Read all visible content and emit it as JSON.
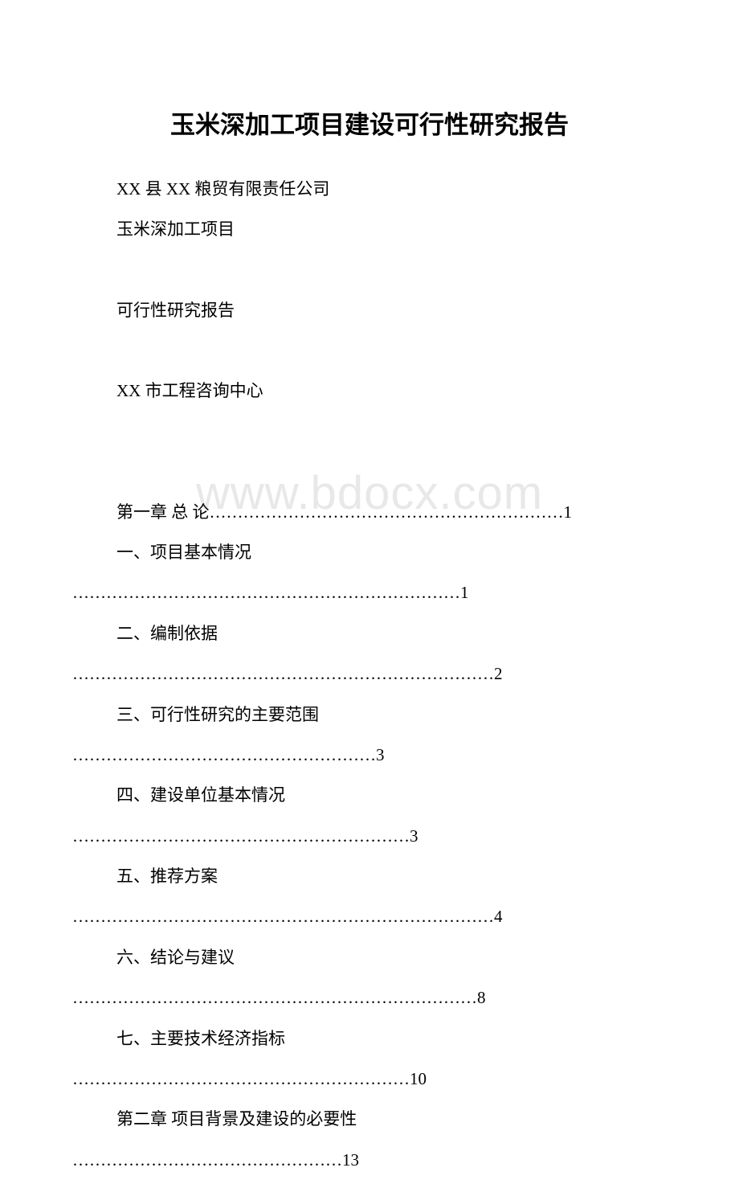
{
  "watermark": "www.bdocx.com",
  "title": "玉米深加工项目建设可行性研究报告",
  "header": {
    "company": "XX 县 XX 粮贸有限责任公司",
    "project": "玉米深加工项目",
    "report_type": "可行性研究报告",
    "author": "XX 市工程咨询中心"
  },
  "toc": {
    "chapter1": {
      "label": "第一章 总 论",
      "dots": "………………………………………………………",
      "page": "1"
    },
    "item1": {
      "label": "一、项目基本情况",
      "dots": "……………………………………………………………",
      "page": "1"
    },
    "item2": {
      "label": "二、编制依据",
      "dots": "…………………………………………………………………",
      "page": "2"
    },
    "item3": {
      "label": "三、可行性研究的主要范围",
      "dots": "………………………………………………",
      "page": "3"
    },
    "item4": {
      "label": "四、建设单位基本情况",
      "dots": "……………………………………………………",
      "page": "3"
    },
    "item5": {
      "label": "五、推荐方案",
      "dots": "…………………………………………………………………",
      "page": "4"
    },
    "item6": {
      "label": "六、结论与建议",
      "dots": "………………………………………………………………",
      "page": "8"
    },
    "item7": {
      "label": "七、主要技术经济指标",
      "dots": "……………………………………………………",
      "page": "10"
    },
    "chapter2": {
      "label": "第二章 项目背景及建设的必要性",
      "dots": "…………………………………………",
      "page": "13"
    }
  },
  "colors": {
    "background": "#ffffff",
    "text": "#000000",
    "watermark": "#e8e8e8"
  },
  "fonts": {
    "title_size": 31,
    "body_size": 21,
    "watermark_size": 58
  }
}
